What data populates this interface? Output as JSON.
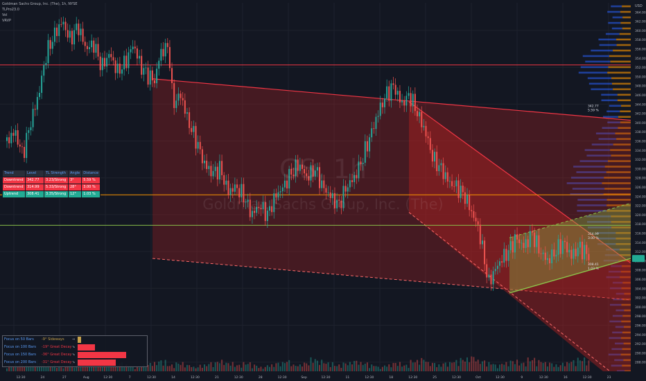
{
  "header": {
    "symbol_line": "Goldman Sachs Group, Inc. (The), 1h, NYSE",
    "indicator_1": "TLPro23.0",
    "indicator_2": "Vol",
    "indicator_3": "VRVP"
  },
  "watermark": {
    "ticker": "GS, 1h",
    "company": "Goldman Sachs Group, Inc. (The)"
  },
  "price_axis": {
    "currency": "USD",
    "ticks": [
      "364.00",
      "362.00",
      "360.00",
      "358.00",
      "356.00",
      "354.00",
      "352.00",
      "350.00",
      "348.00",
      "346.00",
      "344.00",
      "342.00",
      "340.00",
      "338.00",
      "336.00",
      "334.00",
      "332.00",
      "330.00",
      "328.00",
      "326.00",
      "324.00",
      "322.00",
      "320.00",
      "318.00",
      "316.00",
      "314.00",
      "312.00",
      "310.00",
      "308.00",
      "306.00",
      "304.00",
      "302.00",
      "300.00",
      "298.00",
      "296.00",
      "294.00",
      "292.00",
      "290.00",
      "288.00"
    ]
  },
  "time_axis": {
    "ticks": [
      "12:30",
      "24",
      "27",
      "Aug",
      "12:30",
      "7",
      "12:30",
      "14",
      "12:30",
      "21",
      "12:30",
      "28",
      "12:30",
      "Sep",
      "12:30",
      "11",
      "12:30",
      "18",
      "12:30",
      "25",
      "12:30",
      "Oct",
      "12:30",
      "9",
      "12:30",
      "16",
      "12:30",
      "23"
    ]
  },
  "trend_table": {
    "columns": [
      "Trend",
      "Level",
      "TL Strength",
      "Angle",
      "Distance"
    ],
    "rows": [
      {
        "trend": "Downtrend",
        "level": "342.77",
        "strength": "3.23/Strong",
        "angle": "3°",
        "distance": "5.59 %",
        "color": "#f23645"
      },
      {
        "trend": "Downtrend",
        "level": "314.99",
        "strength": "5.33/Strong",
        "angle": "28°",
        "distance": "3.00 %",
        "color": "#f23645"
      },
      {
        "trend": "Uptrend",
        "level": "308.41",
        "strength": "3.35/Strong",
        "angle": "12°",
        "distance": "1.03 %",
        "color": "#22ab94"
      }
    ]
  },
  "focus_panel": {
    "rows": [
      {
        "label": "Focus on 50 Bars",
        "state": "-9° Sideways",
        "arrow": "⇒",
        "color": "#c8a24b",
        "fill": 0.05
      },
      {
        "label": "Focus on 100 Bars",
        "state": "-19° Great Decay",
        "arrow": "⇘",
        "color": "#f23645",
        "fill": 0.25
      },
      {
        "label": "Focus on 150 Bars",
        "state": "-36° Great Decay",
        "arrow": "⇘",
        "color": "#f23645",
        "fill": 0.7
      },
      {
        "label": "Focus on 200 Bars",
        "state": "-31° Great Decay",
        "arrow": "⇘",
        "color": "#f23645",
        "fill": 0.55
      }
    ]
  },
  "price_labels": [
    {
      "text": "342.77",
      "sub": "5.59 %",
      "price": 342.77
    },
    {
      "text": "314.99",
      "sub": "3.00 %",
      "price": 314.99
    },
    {
      "text": "308.41",
      "sub": "1.03 %",
      "price": 308.41
    }
  ],
  "current_price_color": "#22ab94",
  "colors": {
    "bull": "#26a69a",
    "bear": "#ef5350",
    "down_channel": "#b22222",
    "up_channel": "#8bc34a",
    "resistance": "#f23645",
    "support_orange": "#ff9800",
    "support_green": "#8bc34a",
    "profile_blue": "#2962ff",
    "profile_orange": "#ff9800"
  },
  "chart_data": {
    "type": "candlestick",
    "title": "Goldman Sachs Group, Inc. (The), 1h, NYSE",
    "ylim": [
      286,
      366
    ],
    "horizontal_levels": [
      {
        "price": 352.5,
        "color": "#f23645"
      },
      {
        "price": 324.3,
        "color": "#ff9800"
      },
      {
        "price": 317.7,
        "color": "#8bc34a"
      }
    ],
    "price_path": [
      [
        0,
        336
      ],
      [
        8,
        338
      ],
      [
        16,
        333
      ],
      [
        24,
        340
      ],
      [
        32,
        346
      ],
      [
        40,
        355
      ],
      [
        48,
        359
      ],
      [
        56,
        362
      ],
      [
        64,
        358
      ],
      [
        72,
        361
      ],
      [
        80,
        356
      ],
      [
        88,
        357
      ],
      [
        96,
        352
      ],
      [
        104,
        355
      ],
      [
        112,
        351
      ],
      [
        120,
        353
      ],
      [
        128,
        357
      ],
      [
        136,
        352
      ],
      [
        144,
        350
      ],
      [
        150,
        349
      ],
      [
        155,
        355
      ],
      [
        160,
        356
      ],
      [
        164,
        356.5
      ],
      [
        168,
        344
      ],
      [
        176,
        346
      ],
      [
        184,
        340
      ],
      [
        192,
        336
      ],
      [
        200,
        331
      ],
      [
        208,
        329
      ],
      [
        216,
        330
      ],
      [
        224,
        325
      ],
      [
        232,
        326
      ],
      [
        240,
        324
      ],
      [
        248,
        320
      ],
      [
        256,
        322
      ],
      [
        264,
        320
      ],
      [
        272,
        324
      ],
      [
        280,
        326
      ],
      [
        288,
        329
      ],
      [
        296,
        331
      ],
      [
        304,
        328
      ],
      [
        312,
        330
      ],
      [
        320,
        326
      ],
      [
        328,
        324
      ],
      [
        336,
        322
      ],
      [
        344,
        326
      ],
      [
        352,
        328
      ],
      [
        360,
        332
      ],
      [
        368,
        337
      ],
      [
        376,
        342
      ],
      [
        384,
        346
      ],
      [
        392,
        348
      ],
      [
        400,
        344
      ],
      [
        408,
        346
      ],
      [
        416,
        342
      ],
      [
        424,
        338
      ],
      [
        432,
        332
      ],
      [
        440,
        330
      ],
      [
        448,
        327
      ],
      [
        456,
        326
      ],
      [
        464,
        324
      ],
      [
        472,
        320
      ],
      [
        478,
        317
      ],
      [
        484,
        310
      ],
      [
        488,
        305
      ],
      [
        492,
        307
      ],
      [
        500,
        310
      ],
      [
        508,
        312
      ],
      [
        516,
        315
      ],
      [
        524,
        313
      ],
      [
        532,
        316
      ],
      [
        540,
        312
      ],
      [
        548,
        310
      ],
      [
        556,
        312
      ],
      [
        564,
        314
      ],
      [
        572,
        311
      ],
      [
        580,
        313
      ],
      [
        590,
        311
      ]
    ],
    "volume_path": [
      3,
      4,
      3,
      5,
      4,
      3,
      2,
      4,
      3,
      5,
      4,
      3,
      6,
      4,
      3,
      2,
      3,
      4,
      5,
      3,
      4,
      3,
      2,
      3,
      4,
      5,
      4,
      3,
      4,
      3,
      2,
      3,
      4,
      5,
      3,
      4,
      6,
      5,
      4,
      3,
      4,
      5,
      4,
      3,
      2,
      3,
      4,
      3,
      5,
      6,
      4,
      3,
      4,
      5,
      6,
      7,
      5,
      4,
      3,
      4,
      5,
      4,
      6,
      5,
      4,
      3,
      4,
      5,
      6,
      5
    ]
  }
}
